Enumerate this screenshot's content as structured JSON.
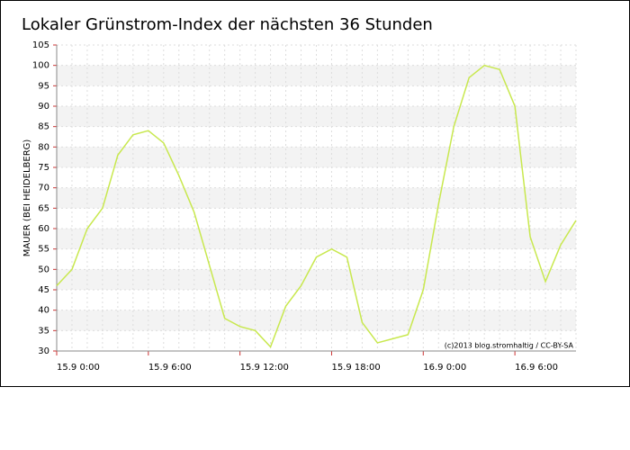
{
  "chart_data": {
    "type": "line",
    "title": "Lokaler Grünstrom-Index der nächsten 36 Stunden",
    "y_label": "MAUER (BEI HEIDELBERG)",
    "annotation": "(c)2013 blog.stromhaltig / CC-BY-SA",
    "x": [
      0,
      1,
      2,
      3,
      4,
      5,
      6,
      7,
      8,
      9,
      10,
      11,
      12,
      13,
      14,
      15,
      16,
      17,
      18,
      19,
      20,
      21,
      22,
      23,
      24,
      25,
      26,
      27,
      28,
      29,
      30,
      31,
      32,
      33,
      34
    ],
    "series": [
      {
        "name": "Grünstrom-Index",
        "color": "#c8e84e",
        "values": [
          46,
          50,
          60,
          65,
          78,
          83,
          84,
          81,
          73,
          64,
          51,
          38,
          36,
          35,
          31,
          41,
          46,
          53,
          55,
          53,
          37,
          32,
          33,
          34,
          45,
          66,
          85,
          97,
          100,
          99,
          90,
          58,
          47,
          56,
          62
        ]
      }
    ],
    "xlim": [
      0,
      34
    ],
    "xticks": [
      {
        "value": 0,
        "label": "15.9 0:00"
      },
      {
        "value": 6,
        "label": "15.9 6:00"
      },
      {
        "value": 12,
        "label": "15.9 12:00"
      },
      {
        "value": 18,
        "label": "15.9 18:00"
      },
      {
        "value": 24,
        "label": "16.9 0:00"
      },
      {
        "value": 30,
        "label": "16.9 6:00"
      }
    ],
    "ylim": [
      30,
      105
    ],
    "yticks": [
      30,
      35,
      40,
      45,
      50,
      55,
      60,
      65,
      70,
      75,
      80,
      85,
      90,
      95,
      100,
      105
    ],
    "grid": true
  }
}
